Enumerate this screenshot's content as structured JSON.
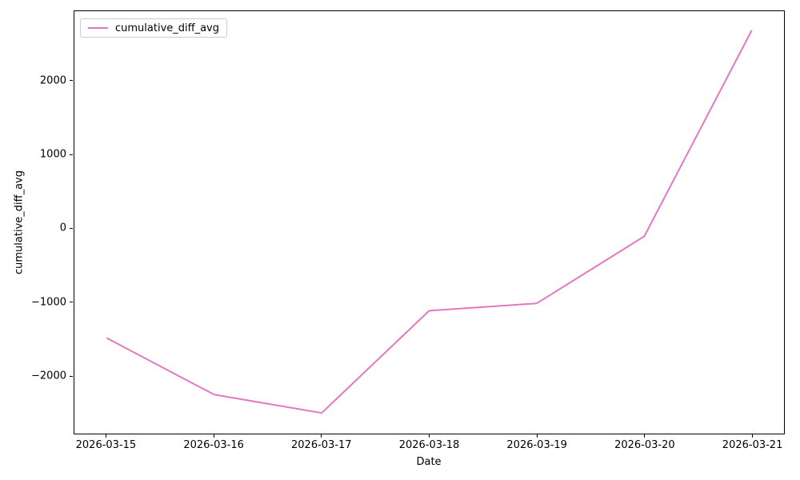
{
  "chart_data": {
    "type": "line",
    "title": "",
    "xlabel": "Date",
    "ylabel": "cumulative_diff_avg",
    "categories": [
      "2026-03-15",
      "2026-03-16",
      "2026-03-17",
      "2026-03-18",
      "2026-03-19",
      "2026-03-20",
      "2026-03-21"
    ],
    "series": [
      {
        "name": "cumulative_diff_avg",
        "color": "#e377c2",
        "line_width": 2,
        "values": [
          -1490,
          -2260,
          -2510,
          -1120,
          -1020,
          -110,
          2690
        ]
      }
    ],
    "xlim": [
      -0.3,
      6.3
    ],
    "ylim": [
      -2790,
      2950
    ],
    "yticks": [
      {
        "value": -2000,
        "label": "−2000"
      },
      {
        "value": -1000,
        "label": "−1000"
      },
      {
        "value": 0,
        "label": "0"
      },
      {
        "value": 1000,
        "label": "1000"
      },
      {
        "value": 2000,
        "label": "2000"
      }
    ],
    "grid": false,
    "legend": {
      "position": "upper-left",
      "entries": [
        {
          "label": "cumulative_diff_avg",
          "color": "#e377c2"
        }
      ]
    },
    "background": "#ffffff",
    "spine_color": "#000000"
  }
}
